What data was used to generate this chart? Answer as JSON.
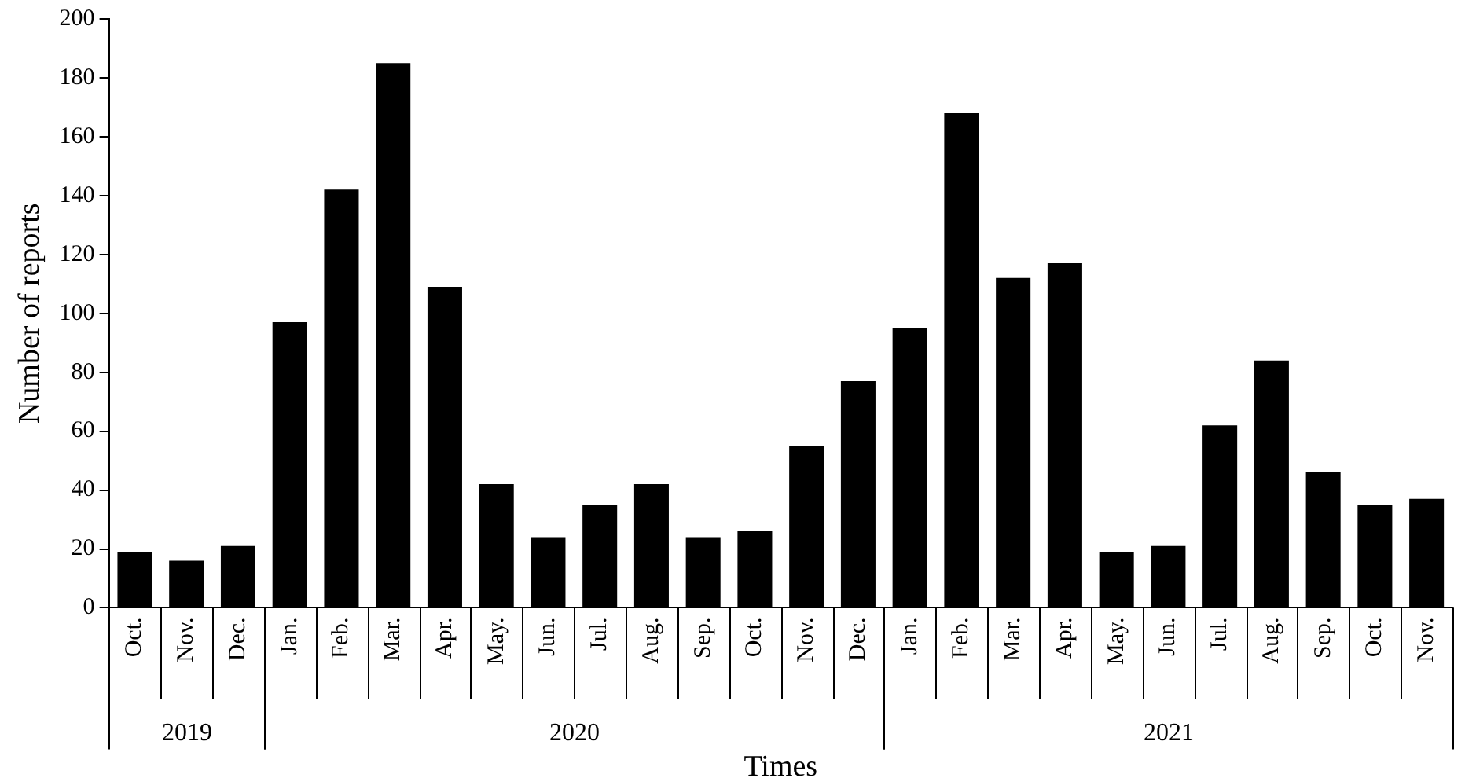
{
  "chart_data": {
    "type": "bar",
    "xlabel": "Times",
    "ylabel": "Number of reports",
    "categories": [
      "Oct.",
      "Nov.",
      "Dec.",
      "Jan.",
      "Feb.",
      "Mar.",
      "Apr.",
      "May.",
      "Jun.",
      "Jul.",
      "Aug.",
      "Sep.",
      "Oct.",
      "Nov.",
      "Dec.",
      "Jan.",
      "Feb.",
      "Mar.",
      "Apr.",
      "May.",
      "Jun.",
      "Jul.",
      "Aug.",
      "Sep.",
      "Oct.",
      "Nov."
    ],
    "values": [
      19,
      16,
      21,
      97,
      142,
      185,
      109,
      42,
      24,
      35,
      42,
      24,
      26,
      55,
      77,
      95,
      168,
      112,
      117,
      19,
      21,
      62,
      84,
      46,
      35,
      37
    ],
    "color": "#000000",
    "ylim": [
      0,
      200
    ],
    "yticks": [
      0,
      20,
      40,
      60,
      80,
      100,
      120,
      140,
      160,
      180,
      200
    ],
    "annotations": [
      "2019",
      "2020",
      "2021"
    ],
    "grid": false,
    "legend": false
  }
}
